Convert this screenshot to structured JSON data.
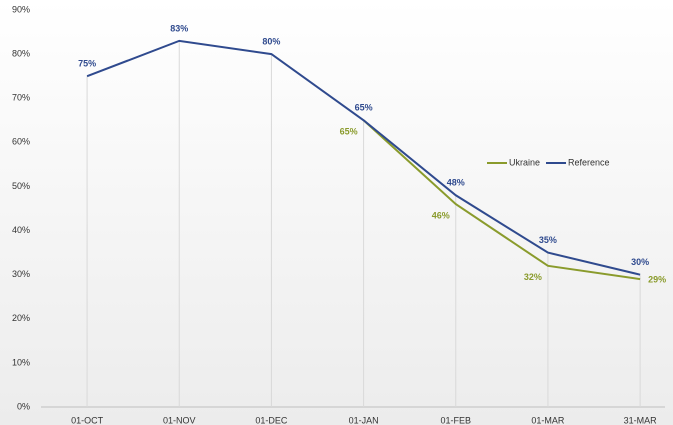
{
  "chart_data": {
    "type": "line",
    "categories": [
      "01-OCT",
      "01-NOV",
      "01-DEC",
      "01-JAN",
      "01-FEB",
      "01-MAR",
      "31-MAR"
    ],
    "series": [
      {
        "name": "Ukraine",
        "color": "#8a9b2c",
        "values": [
          null,
          null,
          null,
          65,
          46,
          32,
          29
        ],
        "value_labels": [
          null,
          null,
          null,
          "65%",
          "46%",
          "32%",
          "29%"
        ]
      },
      {
        "name": "Reference",
        "color": "#2f4a8e",
        "values": [
          75,
          83,
          80,
          65,
          48,
          35,
          30
        ],
        "value_labels": [
          "75%",
          "83%",
          "80%",
          "65%",
          "48%",
          "35%",
          "30%"
        ]
      }
    ],
    "ylim": [
      0,
      90
    ],
    "yticks": [
      {
        "value": 0,
        "label": "0%"
      },
      {
        "value": 10,
        "label": "10%"
      },
      {
        "value": 20,
        "label": "20%"
      },
      {
        "value": 30,
        "label": "30%"
      },
      {
        "value": 40,
        "label": "40%"
      },
      {
        "value": 50,
        "label": "50%"
      },
      {
        "value": 60,
        "label": "60%"
      },
      {
        "value": 70,
        "label": "70%"
      },
      {
        "value": 80,
        "label": "80%"
      },
      {
        "value": 90,
        "label": "90%"
      }
    ],
    "legend": "right"
  }
}
